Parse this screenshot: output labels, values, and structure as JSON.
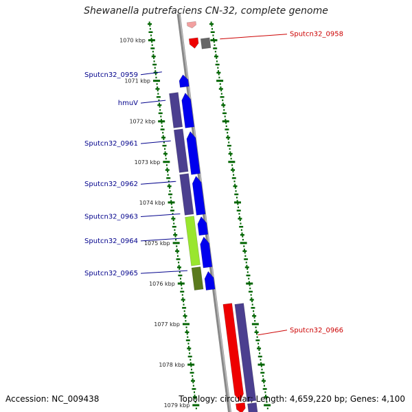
{
  "title": "Shewanella putrefaciens CN-32, complete genome",
  "footer": {
    "accession": "Accession: NC_009438",
    "summary": "Topology: circular; Length: 4,659,220 bp; Genes: 4,100"
  },
  "colors": {
    "forward_label": "#00008b",
    "reverse_label": "#cc0000",
    "tick": "#006400",
    "backbone": "#888888"
  },
  "chart_data": {
    "type": "genome_map",
    "unit": "kbp",
    "visible_range_kbp": [
      1069.6,
      1079.1
    ],
    "ticks": [
      {
        "pos": 1070,
        "label": "1070 kbp"
      },
      {
        "pos": 1071,
        "label": "1071 kbp"
      },
      {
        "pos": 1072,
        "label": "1072 kbp"
      },
      {
        "pos": 1073,
        "label": "1073 kbp"
      },
      {
        "pos": 1074,
        "label": "1074 kbp"
      },
      {
        "pos": 1075,
        "label": "1075 kbp"
      },
      {
        "pos": 1076,
        "label": "1076 kbp"
      },
      {
        "pos": 1077,
        "label": "1077 kbp"
      },
      {
        "pos": 1078,
        "label": "1078 kbp"
      },
      {
        "pos": 1079,
        "label": "1079 kbp"
      }
    ],
    "labeled_genes": [
      {
        "name": "Sputcn32_0958",
        "strand": "reverse",
        "label_side": "right",
        "pos": 1069.9
      },
      {
        "name": "Sputcn32_0959",
        "strand": "forward",
        "label_side": "left",
        "pos": 1070.9
      },
      {
        "name": "hmuV",
        "strand": "forward",
        "label_side": "left",
        "pos": 1071.6
      },
      {
        "name": "Sputcn32_0961",
        "strand": "forward",
        "label_side": "left",
        "pos": 1072.6
      },
      {
        "name": "Sputcn32_0962",
        "strand": "forward",
        "label_side": "left",
        "pos": 1073.6
      },
      {
        "name": "Sputcn32_0963",
        "strand": "forward",
        "label_side": "left",
        "pos": 1074.4
      },
      {
        "name": "Sputcn32_0964",
        "strand": "forward",
        "label_side": "left",
        "pos": 1075.0
      },
      {
        "name": "Sputcn32_0965",
        "strand": "forward",
        "label_side": "left",
        "pos": 1075.8
      },
      {
        "name": "Sputcn32_0966",
        "strand": "reverse",
        "label_side": "right",
        "pos": 1077.2
      }
    ],
    "forward_features": [
      {
        "start": 1070.85,
        "end": 1071.15,
        "color": "#0000ee"
      },
      {
        "start": 1071.3,
        "end": 1072.15,
        "color": "#0000ee"
      },
      {
        "start": 1072.25,
        "end": 1073.3,
        "color": "#0000ee"
      },
      {
        "start": 1073.35,
        "end": 1074.3,
        "color": "#0000ee"
      },
      {
        "start": 1074.35,
        "end": 1074.8,
        "color": "#0000ee"
      },
      {
        "start": 1074.85,
        "end": 1075.6,
        "color": "#0000ee"
      },
      {
        "start": 1075.7,
        "end": 1076.15,
        "color": "#0000ee"
      }
    ],
    "forward_cds_blocks": [
      {
        "start": 1071.3,
        "end": 1072.15,
        "color": "#4b3f8f"
      },
      {
        "start": 1072.2,
        "end": 1073.25,
        "color": "#4b3f8f"
      },
      {
        "start": 1073.3,
        "end": 1074.3,
        "color": "#4b3f8f"
      },
      {
        "start": 1074.35,
        "end": 1075.55,
        "color": "#99e62e"
      },
      {
        "start": 1075.6,
        "end": 1076.15,
        "color": "#5a7a1e"
      }
    ],
    "reverse_features": [
      {
        "start": 1069.55,
        "end": 1069.7,
        "color": "#f2a0a0"
      },
      {
        "start": 1069.95,
        "end": 1070.2,
        "color": "#ee0000"
      },
      {
        "start": 1076.5,
        "end": 1078.9,
        "color": "#ee0000"
      },
      {
        "start": 1078.95,
        "end": 1079.2,
        "color": "#ee0000"
      }
    ],
    "reverse_cds_blocks": [
      {
        "start": 1069.95,
        "end": 1070.2,
        "color": "#666666"
      },
      {
        "start": 1076.5,
        "end": 1078.9,
        "color": "#4b3f8f"
      },
      {
        "start": 1078.95,
        "end": 1079.2,
        "color": "#4b3f8f"
      }
    ]
  }
}
